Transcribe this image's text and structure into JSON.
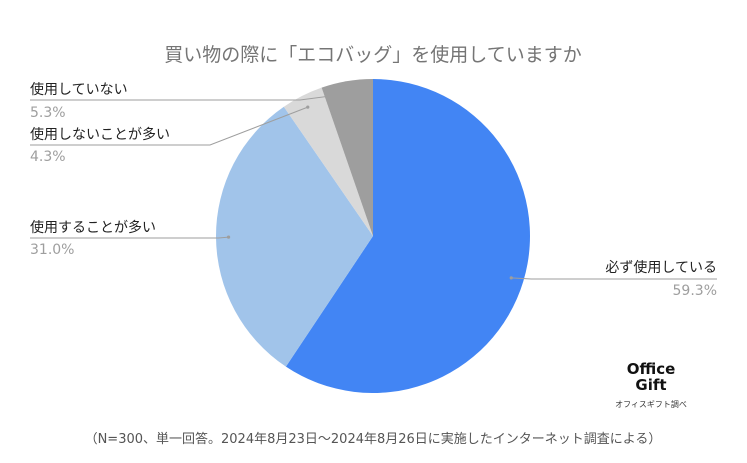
{
  "chart_data": {
    "type": "pie",
    "title": "買い物の際に「エコバッグ」を使用していますか",
    "slices": [
      {
        "label": "必ず使用している",
        "value": 59.3,
        "display": "59.3%",
        "color": "#4285f4"
      },
      {
        "label": "使用することが多い",
        "value": 31.0,
        "display": "31.0%",
        "color": "#a1c4ea"
      },
      {
        "label": "使用しないことが多い",
        "value": 4.3,
        "display": "4.3%",
        "color": "#d9d9d9"
      },
      {
        "label": "使用していない",
        "value": 5.3,
        "display": "5.3%",
        "color": "#9e9e9e"
      }
    ],
    "start_angle_deg": 0,
    "direction": "clockwise"
  },
  "footnote": "（N=300、単一回答。2024年8月23日〜2024年8月26日に実施したインターネット調査による）",
  "logo": {
    "line1": "Office",
    "line2": "Gift",
    "caption": "オフィスギフト調べ"
  }
}
